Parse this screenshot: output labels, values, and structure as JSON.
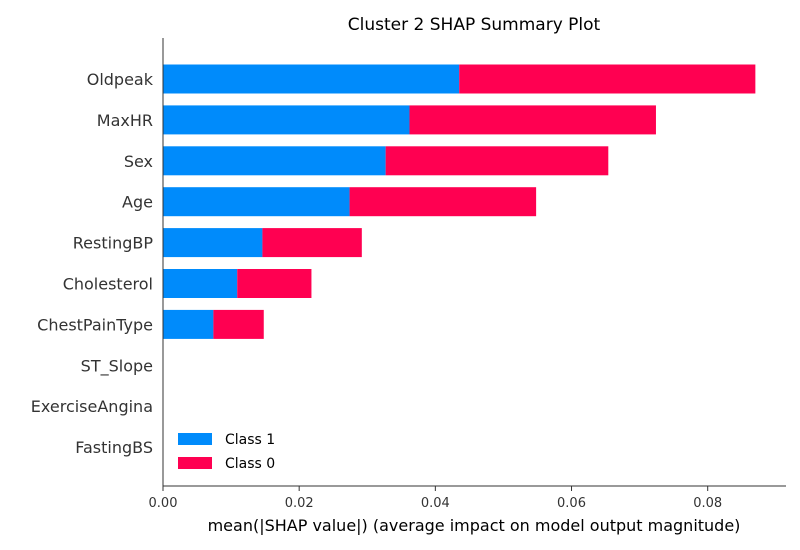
{
  "chart_data": {
    "type": "bar",
    "orientation": "horizontal",
    "stacked": true,
    "title": "Cluster 2 SHAP Summary Plot",
    "xlabel": "mean(|SHAP value|) (average impact on model output magnitude)",
    "ylabel": "",
    "xlim": [
      0,
      0.0915
    ],
    "xticks": [
      0.0,
      0.02,
      0.04,
      0.06,
      0.08
    ],
    "xtick_labels": [
      "0.00",
      "0.02",
      "0.04",
      "0.06",
      "0.08"
    ],
    "categories": [
      "Oldpeak",
      "MaxHR",
      "Sex",
      "Age",
      "RestingBP",
      "Cholesterol",
      "ChestPainType",
      "ST_Slope",
      "ExerciseAngina",
      "FastingBS"
    ],
    "series": [
      {
        "name": "Class 1",
        "color": "#008bfb",
        "values": [
          0.0435,
          0.0362,
          0.0327,
          0.0274,
          0.0146,
          0.0109,
          0.0074,
          0,
          0,
          0
        ]
      },
      {
        "name": "Class 0",
        "color": "#ff0051",
        "values": [
          0.0435,
          0.0362,
          0.0327,
          0.0274,
          0.0146,
          0.0109,
          0.0074,
          0,
          0,
          0
        ]
      }
    ],
    "legend": {
      "position": "lower-left"
    },
    "grid": false
  }
}
